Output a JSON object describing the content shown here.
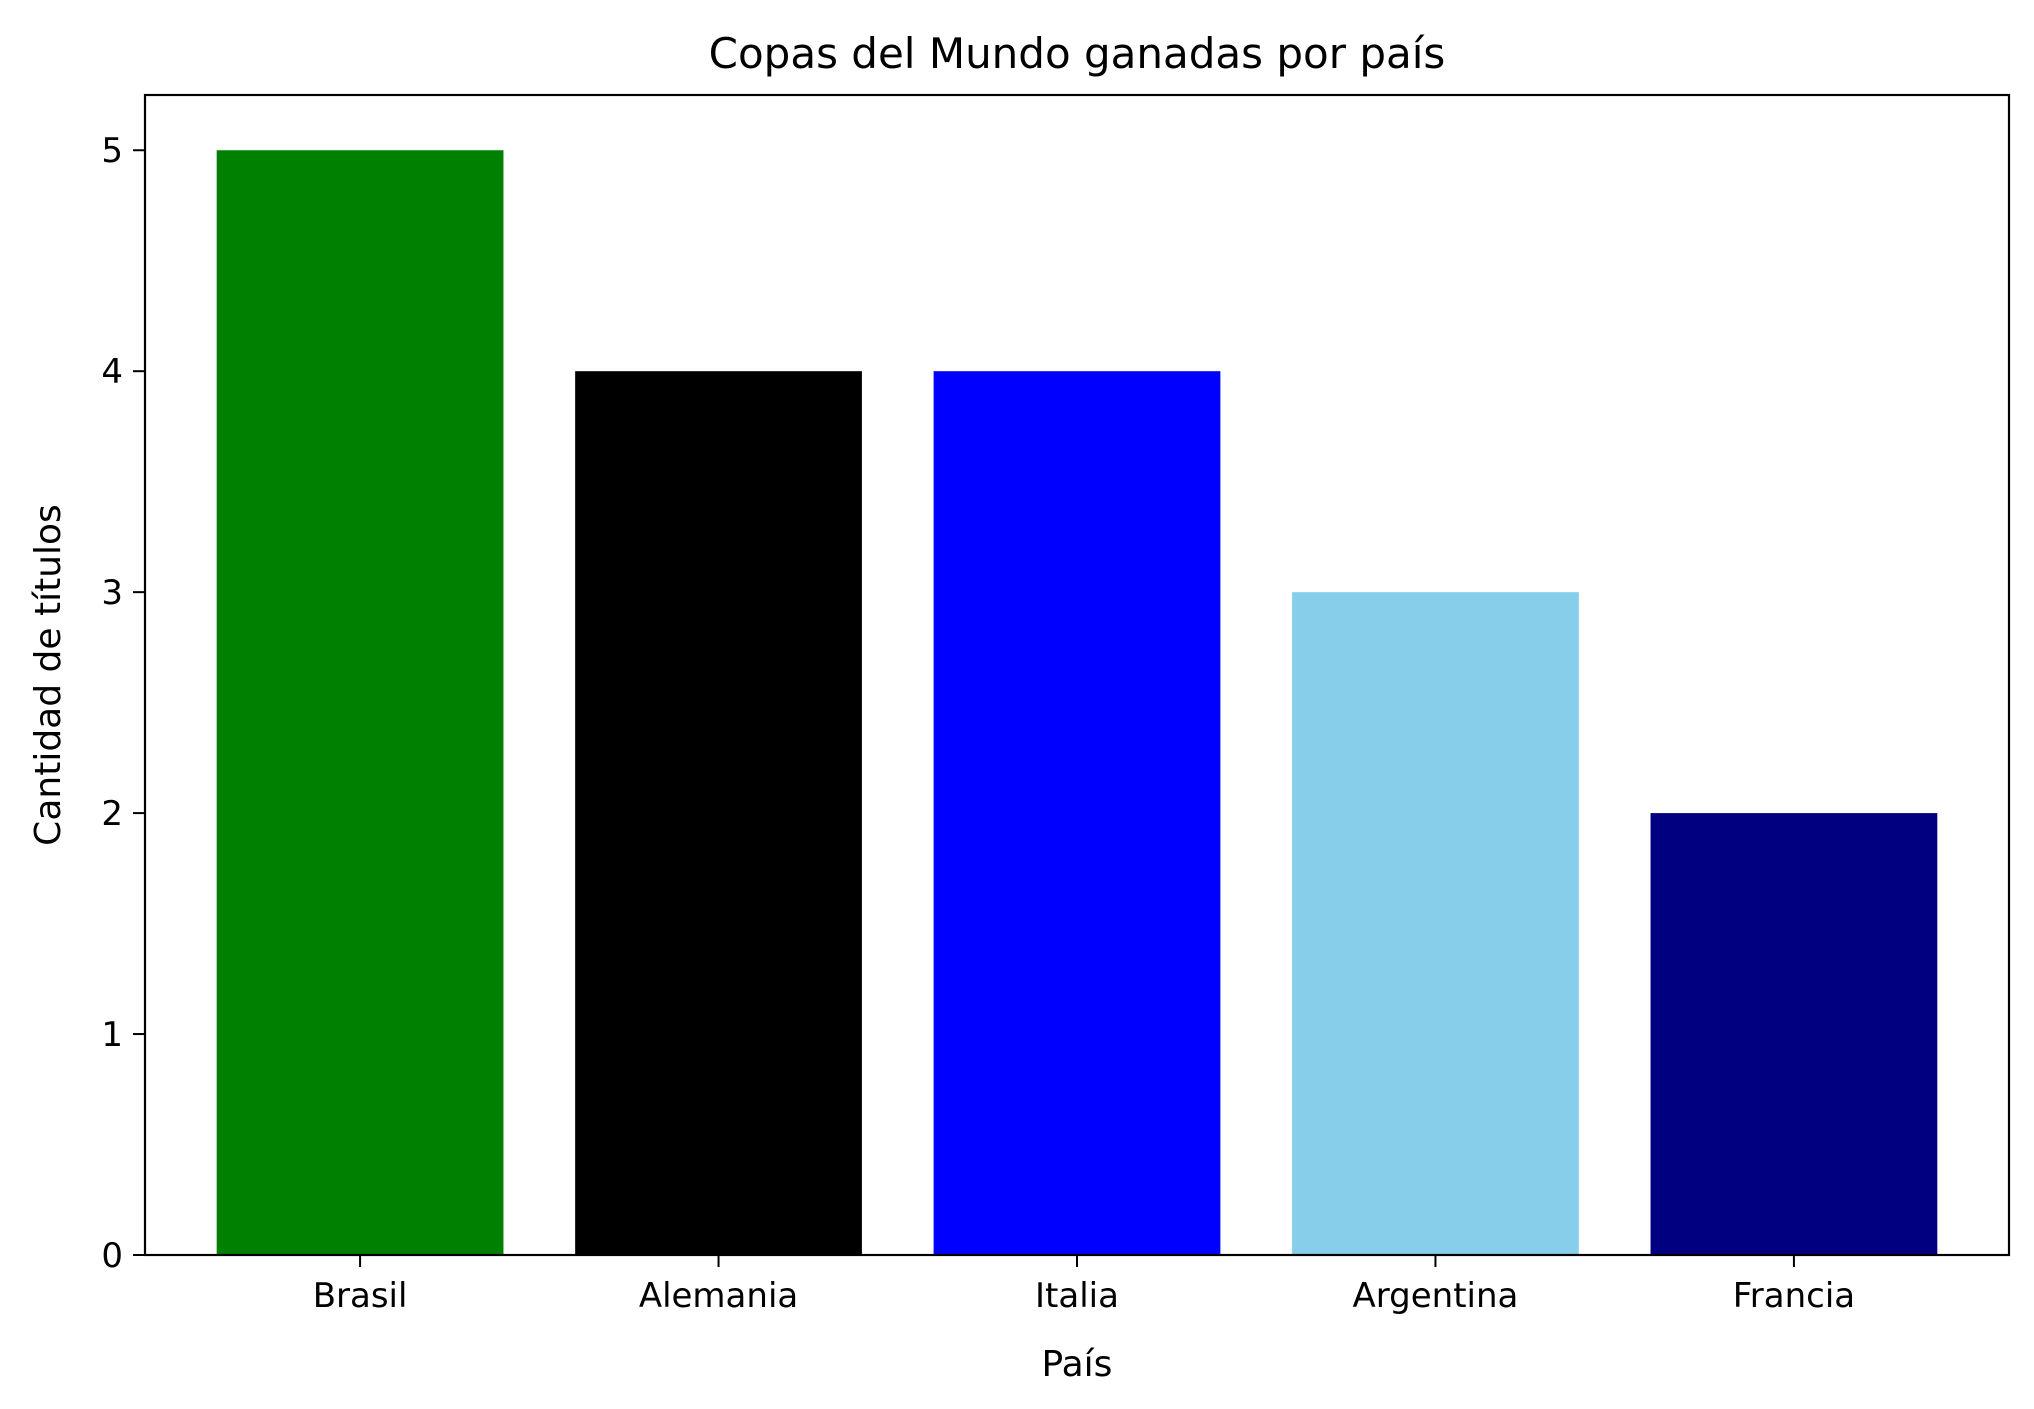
{
  "chart_data": {
    "type": "bar",
    "title": "Copas del Mundo ganadas por país",
    "xlabel": "País",
    "ylabel": "Cantidad de títulos",
    "categories": [
      "Brasil",
      "Alemania",
      "Italia",
      "Argentina",
      "Francia"
    ],
    "values": [
      5,
      4,
      4,
      3,
      2
    ],
    "colors": [
      "#008000",
      "#000000",
      "#0000ff",
      "#87ceeb",
      "#000080"
    ],
    "ylim": [
      0,
      5.25
    ],
    "yticks": [
      0,
      1,
      2,
      3,
      4,
      5
    ],
    "grid": false,
    "legend": "none"
  }
}
